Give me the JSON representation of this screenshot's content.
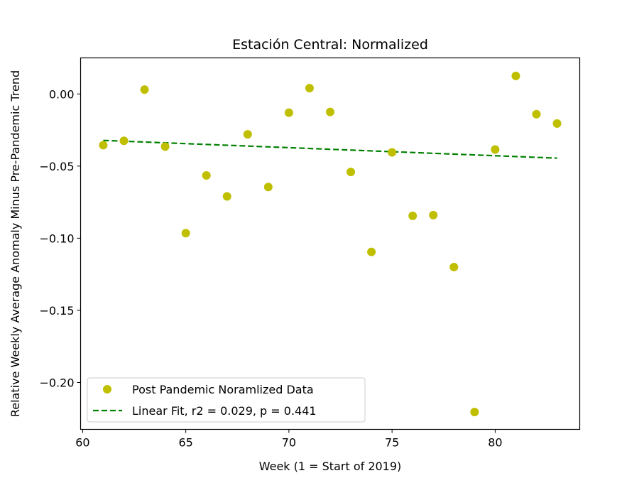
{
  "chart_data": {
    "type": "scatter",
    "title": "Estación Central: Normalized",
    "xlabel": "Week (1 = Start of 2019)",
    "ylabel": "Relative Weekly Average Anomaly Minus Pre-Pandemic Trend",
    "xlim": [
      59.9,
      84.1
    ],
    "ylim": [
      -0.2325,
      0.025
    ],
    "xticks": [
      60,
      65,
      70,
      75,
      80
    ],
    "yticks": [
      0.0,
      -0.05,
      -0.1,
      -0.15,
      -0.2
    ],
    "xtick_labels": [
      "60",
      "65",
      "70",
      "75",
      "80"
    ],
    "ytick_labels": [
      "0.00",
      "−0.05",
      "−0.10",
      "−0.15",
      "−0.20"
    ],
    "grid": false,
    "legend_position": "lower-left",
    "series": [
      {
        "name": "Post Pandemic Noramlized Data",
        "kind": "scatter",
        "color": "#bfbf00",
        "x": [
          61,
          62,
          63,
          64,
          65,
          66,
          67,
          68,
          69,
          70,
          71,
          72,
          73,
          74,
          75,
          76,
          77,
          78,
          79,
          80,
          81,
          82,
          83
        ],
        "y": [
          -0.0355,
          -0.0325,
          0.003,
          -0.0365,
          -0.0965,
          -0.0565,
          -0.071,
          -0.028,
          -0.0645,
          -0.013,
          0.004,
          -0.0125,
          -0.054,
          -0.1095,
          -0.0405,
          -0.0845,
          -0.084,
          -0.12,
          -0.2205,
          -0.0385,
          0.0125,
          -0.014,
          -0.0205
        ]
      },
      {
        "name": "Linear Fit, r2 = 0.029, p = 0.441",
        "kind": "line",
        "style": "dashed",
        "color": "#008000",
        "x": [
          61,
          83
        ],
        "y": [
          -0.0322,
          -0.0445
        ]
      }
    ]
  }
}
